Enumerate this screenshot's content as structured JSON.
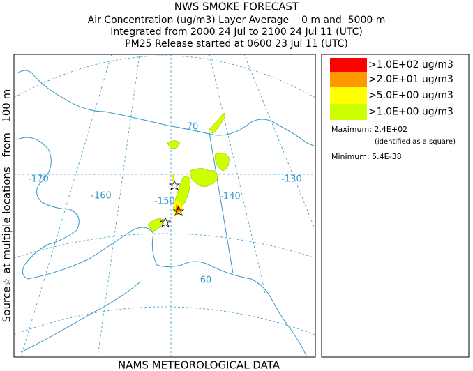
{
  "header": {
    "title": "NWS SMOKE FORECAST",
    "lines": [
      "Air Concentration (ug/m3) Layer Average    0 m and  5000 m",
      "Integrated from 2000 24 Jul to 2100 24 Jul 11 (UTC)",
      "PM25 Release started at 0600 23 Jul 11 (UTC)"
    ]
  },
  "map": {
    "labels": [
      "-170",
      "-160",
      "-150",
      "-140",
      "-130",
      "70",
      "60"
    ],
    "side_label": "Source☆ at multiple locations   from   100 m",
    "footer": "NAMS METEOROLOGICAL DATA"
  },
  "legend": {
    "entries": [
      {
        "label": ">1.0E+02 ug/m3",
        "color": "#ff0000"
      },
      {
        "label": ">2.0E+01 ug/m3",
        "color": "#ff9900"
      },
      {
        "label": ">5.0E+00 ug/m3",
        "color": "#ffff00"
      },
      {
        "label": ">1.0E+00 ug/m3",
        "color": "#ccff00"
      }
    ],
    "maximum": "Maximum: 2.4E+02",
    "maximum_note": "(identified as a square)",
    "minimum": "Minimum: 5.4E-38"
  }
}
